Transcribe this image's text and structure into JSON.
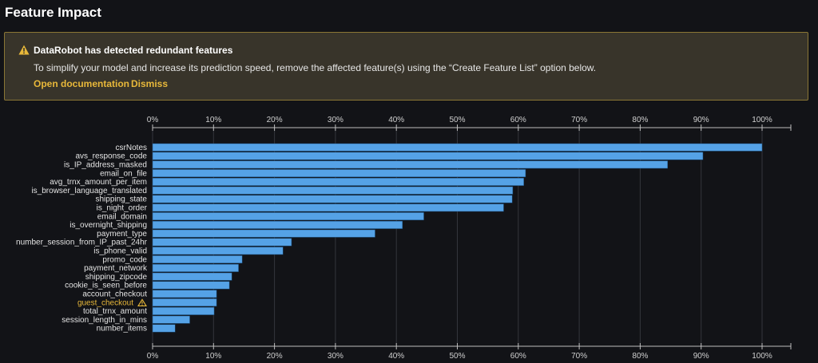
{
  "page": {
    "title": "Feature Impact"
  },
  "alert": {
    "icon": "warning-icon",
    "color": "#e8b83a",
    "title": "DataRobot has detected redundant features",
    "message": "To simplify your model and increase its prediction speed, remove the affected feature(s) using the “Create Feature List” option below.",
    "links": {
      "documentation": "Open documentation",
      "dismiss": "Dismiss"
    }
  },
  "chart_data": {
    "type": "bar",
    "orientation": "horizontal",
    "bar_color": "#55a2e6",
    "xlim": [
      0,
      100
    ],
    "xticks": [
      "0%",
      "10%",
      "20%",
      "30%",
      "40%",
      "50%",
      "60%",
      "70%",
      "80%",
      "90%",
      "100%"
    ],
    "grid": true,
    "xaxis_position": "top and bottom",
    "categories": [
      "csrNotes",
      "avs_response_code",
      "is_IP_address_masked",
      "email_on_file",
      "avg_trnx_amount_per_item",
      "is_browser_language_translated",
      "shipping_state",
      "is_night_order",
      "email_domain",
      "is_overnight_shipping",
      "payment_type",
      "number_session_from_IP_past_24hr",
      "is_phone_valid",
      "promo_code",
      "payment_network",
      "shipping_zipcode",
      "cookie_is_seen_before",
      "account_checkout",
      "guest_checkout",
      "total_trnx_amount",
      "session_length_in_mins",
      "number_items"
    ],
    "values": [
      100,
      90.3,
      84.5,
      61.2,
      60.9,
      59.1,
      59.0,
      57.6,
      44.5,
      41.0,
      36.5,
      22.8,
      21.4,
      14.7,
      14.1,
      13.0,
      12.6,
      10.5,
      10.5,
      10.1,
      6.1,
      3.7
    ],
    "flagged": [
      "guest_checkout"
    ]
  }
}
